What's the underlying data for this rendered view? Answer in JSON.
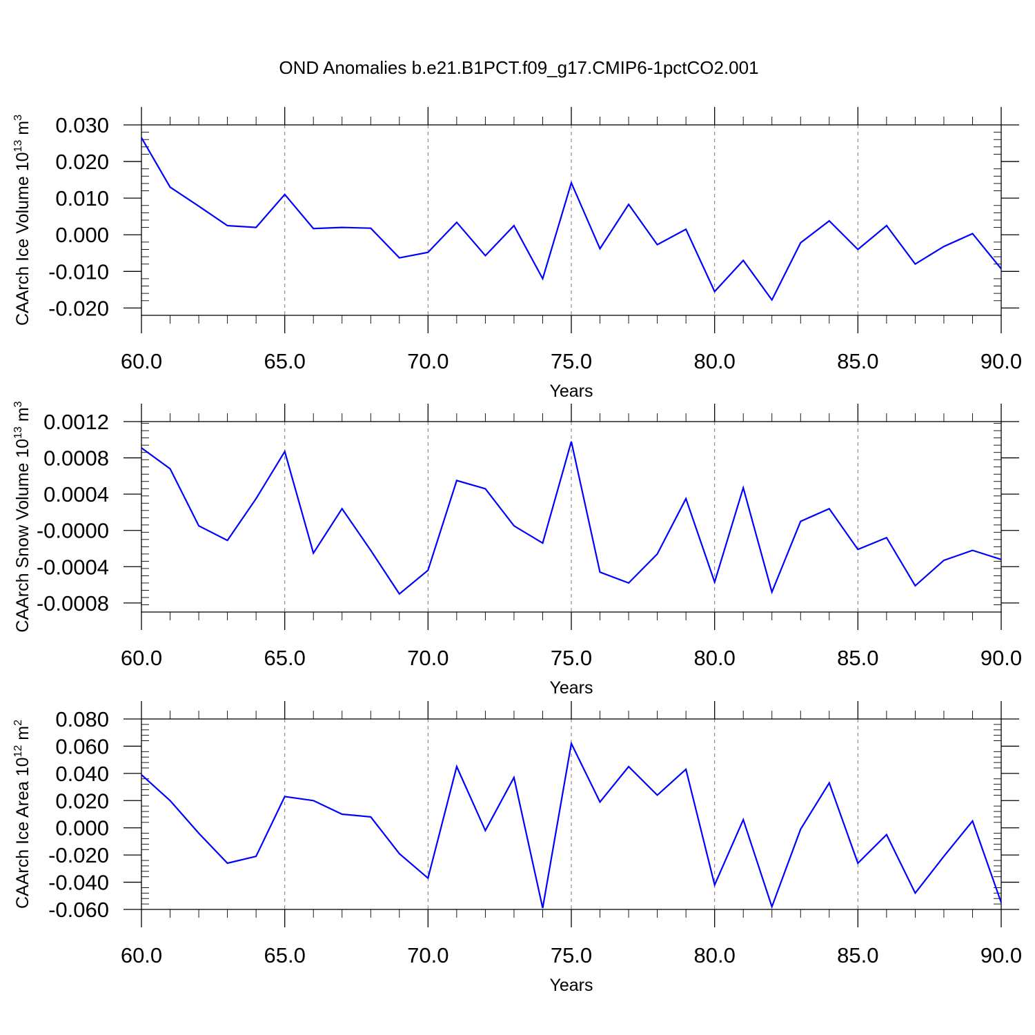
{
  "title": "OND Anomalies b.e21.B1PCT.f09_g17.CMIP6-1pctCO2.001",
  "colors": {
    "line": "#0000ff",
    "grid": "#777777"
  },
  "chart_data": [
    {
      "type": "line",
      "xlabel": "Years",
      "ylabel": "CAArch Ice Volume 10",
      "ylabel_exp": "13",
      "ylabel_unit": " m",
      "ylabel_unit_exp": "3",
      "xlim": [
        60,
        90
      ],
      "ylim": [
        -0.022,
        0.03
      ],
      "xticks": [
        60,
        65,
        70,
        75,
        80,
        85,
        90
      ],
      "xtick_labels": [
        "60.0",
        "65.0",
        "70.0",
        "75.0",
        "80.0",
        "85.0",
        "90.0"
      ],
      "yticks": [
        -0.02,
        -0.01,
        0.0,
        0.01,
        0.02,
        0.03
      ],
      "ytick_labels": [
        "-0.020",
        "-0.010",
        "0.000",
        "0.010",
        "0.020",
        "0.030"
      ],
      "grid": "vertical dashed at major x ticks",
      "x": [
        60,
        61,
        62,
        63,
        64,
        65,
        66,
        67,
        68,
        69,
        70,
        71,
        72,
        73,
        74,
        75,
        76,
        77,
        78,
        79,
        80,
        81,
        82,
        83,
        84,
        85,
        86,
        87,
        88,
        89,
        90
      ],
      "y": [
        0.0265,
        0.013,
        0.0078,
        0.0025,
        0.002,
        0.011,
        0.0017,
        0.002,
        0.0018,
        -0.0063,
        -0.0048,
        0.0034,
        -0.0057,
        0.0025,
        -0.012,
        0.0142,
        -0.0038,
        0.0083,
        -0.0027,
        0.0015,
        -0.0155,
        -0.007,
        -0.0178,
        -0.0022,
        0.0038,
        -0.004,
        0.0025,
        -0.008,
        -0.0032,
        0.0003,
        -0.0093
      ]
    },
    {
      "type": "line",
      "xlabel": "Years",
      "ylabel": "CAArch Snow Volume 10",
      "ylabel_exp": "13",
      "ylabel_unit": " m",
      "ylabel_unit_exp": "3",
      "xlim": [
        60,
        90
      ],
      "ylim": [
        -0.0009,
        0.0012
      ],
      "xticks": [
        60,
        65,
        70,
        75,
        80,
        85,
        90
      ],
      "xtick_labels": [
        "60.0",
        "65.0",
        "70.0",
        "75.0",
        "80.0",
        "85.0",
        "90.0"
      ],
      "yticks": [
        -0.0008,
        -0.0004,
        0.0,
        0.0004,
        0.0008,
        0.0012
      ],
      "ytick_labels": [
        "-0.0008",
        "-0.0004",
        "-0.0000",
        "0.0004",
        "0.0008",
        "0.0012"
      ],
      "grid": "vertical dashed at major x ticks",
      "x": [
        60,
        61,
        62,
        63,
        64,
        65,
        66,
        67,
        68,
        69,
        70,
        71,
        72,
        73,
        74,
        75,
        76,
        77,
        78,
        79,
        80,
        81,
        82,
        83,
        84,
        85,
        86,
        87,
        88,
        89,
        90
      ],
      "y": [
        0.00091,
        0.00068,
        5e-05,
        -0.00011,
        0.00035,
        0.00087,
        -0.00025,
        0.00024,
        -0.00022,
        -0.0007,
        -0.00044,
        0.00055,
        0.00046,
        5e-05,
        -0.00014,
        0.00098,
        -0.00046,
        -0.00058,
        -0.00026,
        0.00035,
        -0.00057,
        0.00047,
        -0.00068,
        0.0001,
        0.00024,
        -0.00021,
        -8e-05,
        -0.00061,
        -0.00033,
        -0.00022,
        -0.00032
      ]
    },
    {
      "type": "line",
      "xlabel": "Years",
      "ylabel": "CAArch Ice Area 10",
      "ylabel_exp": "12",
      "ylabel_unit": " m",
      "ylabel_unit_exp": "2",
      "xlim": [
        60,
        90
      ],
      "ylim": [
        -0.06,
        0.08
      ],
      "xticks": [
        60,
        65,
        70,
        75,
        80,
        85,
        90
      ],
      "xtick_labels": [
        "60.0",
        "65.0",
        "70.0",
        "75.0",
        "80.0",
        "85.0",
        "90.0"
      ],
      "yticks": [
        -0.06,
        -0.04,
        -0.02,
        0.0,
        0.02,
        0.04,
        0.06,
        0.08
      ],
      "ytick_labels": [
        "-0.060",
        "-0.040",
        "-0.020",
        "0.000",
        "0.020",
        "0.040",
        "0.060",
        "0.080"
      ],
      "grid": "vertical dashed at major x ticks",
      "x": [
        60,
        61,
        62,
        63,
        64,
        65,
        66,
        67,
        68,
        69,
        70,
        71,
        72,
        73,
        74,
        75,
        76,
        77,
        78,
        79,
        80,
        81,
        82,
        83,
        84,
        85,
        86,
        87,
        88,
        89,
        90
      ],
      "y": [
        0.039,
        0.02,
        -0.004,
        -0.026,
        -0.021,
        0.023,
        0.02,
        0.01,
        0.008,
        -0.019,
        -0.037,
        0.045,
        -0.002,
        0.037,
        -0.059,
        0.062,
        0.019,
        0.045,
        0.024,
        0.043,
        -0.042,
        0.006,
        -0.058,
        -0.001,
        0.033,
        -0.026,
        -0.005,
        -0.048,
        -0.021,
        0.005,
        -0.055
      ]
    }
  ]
}
